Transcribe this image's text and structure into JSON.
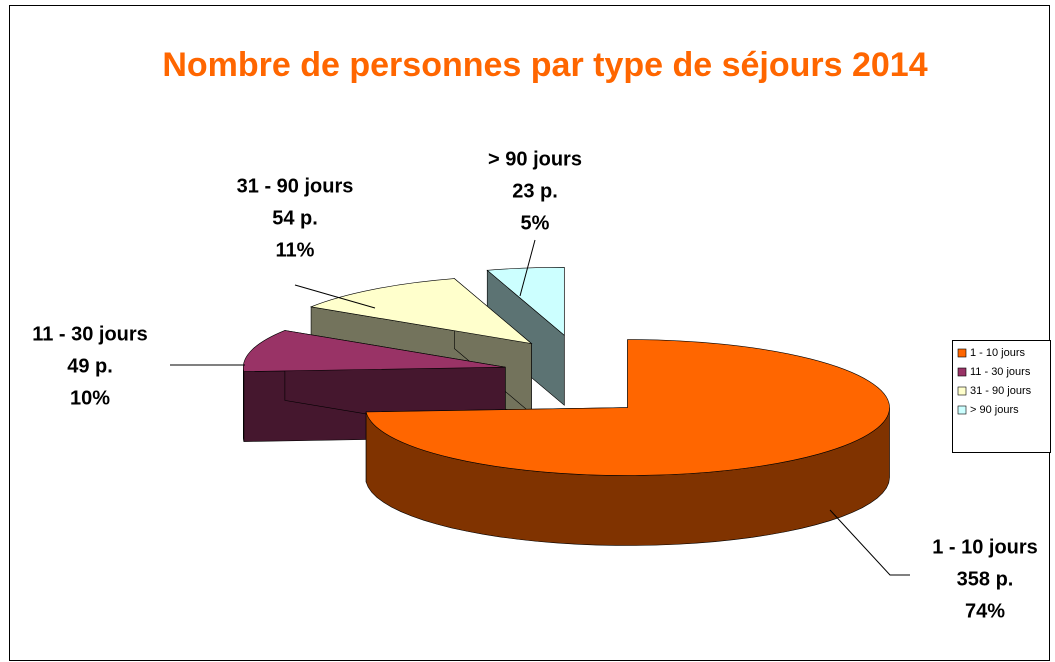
{
  "chart_data": {
    "type": "pie3d",
    "title": "Nombre de personnes par type de séjours 2014",
    "categories": [
      "1 - 10 jours",
      "11 - 30 jours",
      "31 - 90 jours",
      "> 90 jours"
    ],
    "values": [
      358,
      49,
      54,
      23
    ],
    "value_labels": [
      "358 p.",
      "49 p.",
      "54 p.",
      "23 p."
    ],
    "percents": [
      74,
      10,
      11,
      5
    ],
    "percent_labels": [
      "74%",
      "10%",
      "11%",
      "5%"
    ],
    "colors": [
      "#ff6600",
      "#993366",
      "#ffffcc",
      "#ccffff"
    ],
    "legend": "right"
  }
}
